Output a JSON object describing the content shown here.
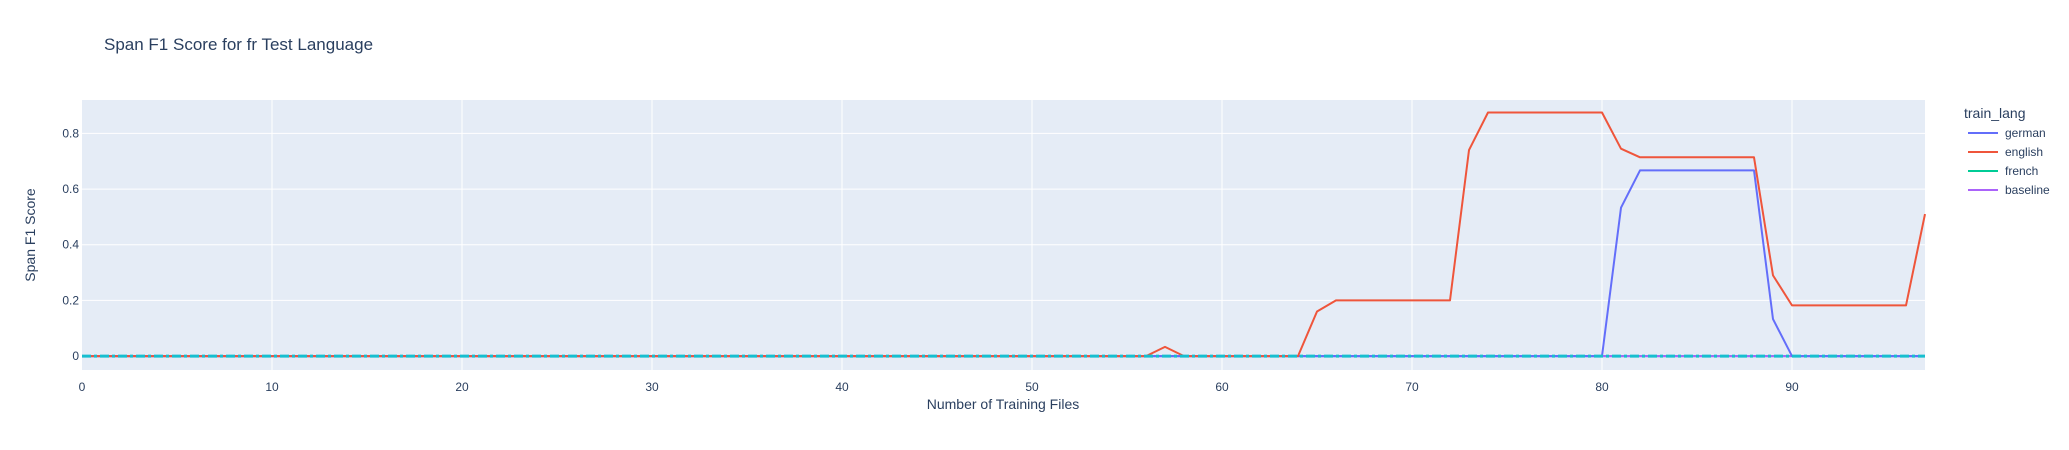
{
  "chart_data": {
    "type": "line",
    "title": "Span F1 Score for fr Test Language",
    "xlabel": "Number of Training Files",
    "ylabel": "Span F1 Score",
    "xlim": [
      0,
      97
    ],
    "ylim": [
      -0.05,
      0.92
    ],
    "x_ticks": [
      0,
      10,
      20,
      30,
      40,
      50,
      60,
      70,
      80,
      90
    ],
    "y_ticks": [
      0,
      0.2,
      0.4,
      0.6,
      0.8
    ],
    "grid": true,
    "legend_title": "train_lang",
    "legend_position": "right",
    "series": [
      {
        "name": "german",
        "color": "#636efa",
        "dash": "solid",
        "points": [
          [
            0,
            0
          ],
          [
            80,
            0
          ],
          [
            81,
            0.533
          ],
          [
            82,
            0.667
          ],
          [
            88,
            0.667
          ],
          [
            89,
            0.133
          ],
          [
            90,
            0
          ],
          [
            97,
            0
          ]
        ]
      },
      {
        "name": "english",
        "color": "#ef553b",
        "dash": "solid",
        "points": [
          [
            0,
            0
          ],
          [
            56,
            0
          ],
          [
            57,
            0.033
          ],
          [
            58,
            0
          ],
          [
            64,
            0
          ],
          [
            65,
            0.16
          ],
          [
            66,
            0.2
          ],
          [
            72,
            0.2
          ],
          [
            73,
            0.74
          ],
          [
            74,
            0.875
          ],
          [
            80,
            0.875
          ],
          [
            81,
            0.745
          ],
          [
            82,
            0.714
          ],
          [
            88,
            0.714
          ],
          [
            89,
            0.29
          ],
          [
            90,
            0.182
          ],
          [
            96,
            0.182
          ],
          [
            97,
            0.51
          ]
        ]
      },
      {
        "name": "french",
        "color": "#00cc96",
        "dash": "solid",
        "points": [
          [
            0,
            0
          ],
          [
            97,
            0
          ]
        ]
      },
      {
        "name": "baseline",
        "color": "#ab63fa",
        "dash": "solid",
        "points": [
          [
            0,
            0
          ],
          [
            97,
            0
          ]
        ]
      },
      {
        "name": "",
        "color": "#17becf",
        "dash": "dashdot",
        "points": [
          [
            0,
            0
          ],
          [
            97,
            0
          ]
        ]
      }
    ]
  }
}
